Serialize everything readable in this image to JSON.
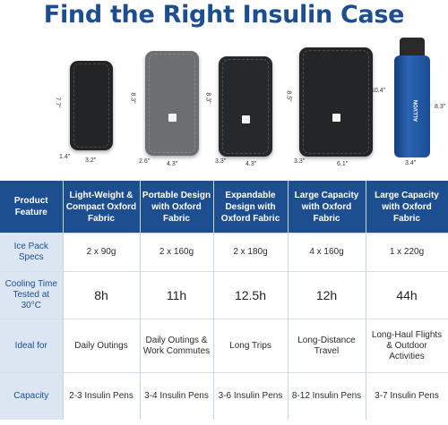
{
  "title": "Find the Right Insulin Case",
  "colors": {
    "brand": "#1d4e8f",
    "feature_bg": "#dce6f3"
  },
  "product_images": {
    "case1": {
      "height_label": "7.7\"",
      "depth_label": "1.4\"",
      "width_label": "3.2\""
    },
    "case2": {
      "height_label": "8.3\"",
      "depth_label": "2.6\"",
      "width_label": "4.3\""
    },
    "case3": {
      "height_label": "8.3\"",
      "depth_label": "3.3\"",
      "width_label": "4.3\""
    },
    "case4": {
      "height_label": "8.5\"",
      "depth_label": "3.3\"",
      "width_label": "6.1\""
    },
    "bottle": {
      "height_label": "10.4\"",
      "body_label": "8.3\"",
      "width_label": "3.4\"",
      "brand_text": "ALLVON"
    }
  },
  "table": {
    "header": [
      "Product Feature",
      "Light-Weight & Compact Oxford Fabric",
      "Portable Design with Oxford Fabric",
      "Expandable Design with Oxford Fabric",
      "Large Capacity with Oxford Fabric",
      "Large Capacity with Oxford Fabric"
    ],
    "rows": [
      {
        "feature": "Ice Pack Specs",
        "values": [
          "2 x 90g",
          "2 x 160g",
          "2 x 180g",
          "4 x 160g",
          "1 x 220g"
        ]
      },
      {
        "feature": "Cooling Time Tested at 30°C",
        "values": [
          "8h",
          "11h",
          "12.5h",
          "12h",
          "44h"
        ]
      },
      {
        "feature": "Ideal for",
        "values": [
          "Daily Outings",
          "Daily Outings & Work Commutes",
          "Long Trips",
          "Long-Distance Travel",
          "Long-Haul Flights & Outdoor Activities"
        ]
      },
      {
        "feature": "Capacity",
        "values": [
          "2-3 Insulin Pens",
          "3-4 Insulin Pens",
          "3-6 Insulin Pens",
          "8-12 Insulin Pens",
          "3-7 Insulin Pens"
        ]
      }
    ]
  }
}
